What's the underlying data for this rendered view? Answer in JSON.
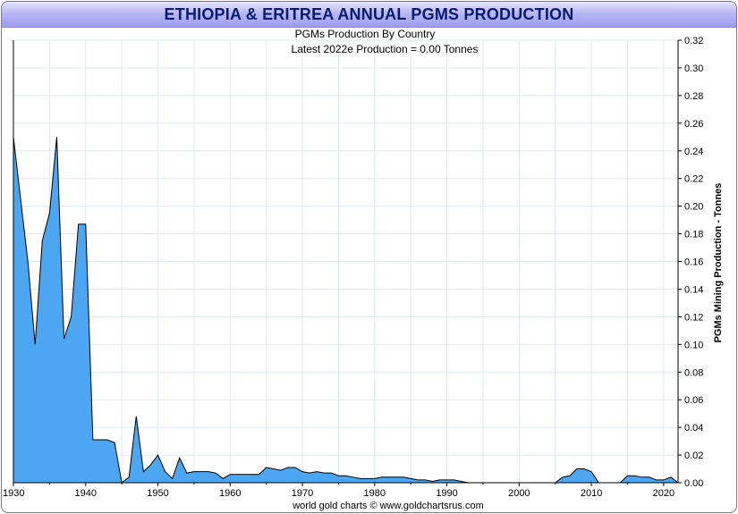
{
  "header": {
    "title": "ETHIOPIA & ERITREA ANNUAL PGMS PRODUCTION"
  },
  "chart_data": {
    "type": "area",
    "subtitle": "PGMs Production By Country",
    "annotation": "Latest 2022e Production = 0.00 Tonnes",
    "ylabel": "PGMs Mining Production - Tonnes",
    "xlabel": "",
    "footer": "world gold charts © www.goldchartsrus.com",
    "xlim": [
      1930,
      2022
    ],
    "ylim": [
      0,
      0.32
    ],
    "x_ticks": [
      "1930",
      "1940",
      "1950",
      "1960",
      "1970",
      "1980",
      "1990",
      "2000",
      "2010",
      "2020"
    ],
    "y_ticks": [
      "0.00",
      "0.02",
      "0.04",
      "0.06",
      "0.08",
      "0.10",
      "0.12",
      "0.14",
      "0.16",
      "0.18",
      "0.20",
      "0.22",
      "0.24",
      "0.26",
      "0.28",
      "0.30",
      "0.32"
    ],
    "y_axis_side": "right",
    "grid": true,
    "fill_color": "#4da6f2",
    "line_color": "#000000",
    "series": [
      {
        "x": [
          1930,
          1931,
          1932,
          1933,
          1934,
          1935,
          1936,
          1937,
          1938,
          1939,
          1940,
          1941,
          1942,
          1943,
          1944,
          1945,
          1946,
          1947,
          1948,
          1949,
          1950,
          1951,
          1952,
          1953,
          1954,
          1955,
          1956,
          1957,
          1958,
          1959,
          1960,
          1961,
          1962,
          1963,
          1964,
          1965,
          1966,
          1967,
          1968,
          1969,
          1970,
          1971,
          1972,
          1973,
          1974,
          1975,
          1976,
          1977,
          1978,
          1979,
          1980,
          1981,
          1982,
          1983,
          1984,
          1985,
          1986,
          1987,
          1988,
          1989,
          1990,
          1991,
          1992,
          1993,
          1994,
          1995,
          1996,
          1997,
          1998,
          1999,
          2000,
          2001,
          2002,
          2003,
          2004,
          2005,
          2006,
          2007,
          2008,
          2009,
          2010,
          2011,
          2012,
          2013,
          2014,
          2015,
          2016,
          2017,
          2018,
          2019,
          2020,
          2021,
          2022
        ],
        "values": [
          0.25,
          0.205,
          0.16,
          0.1,
          0.175,
          0.195,
          0.25,
          0.104,
          0.12,
          0.187,
          0.187,
          0.031,
          0.031,
          0.031,
          0.029,
          0.0,
          0.004,
          0.048,
          0.008,
          0.013,
          0.02,
          0.008,
          0.003,
          0.018,
          0.007,
          0.008,
          0.008,
          0.008,
          0.007,
          0.003,
          0.006,
          0.006,
          0.006,
          0.006,
          0.006,
          0.011,
          0.01,
          0.009,
          0.011,
          0.011,
          0.008,
          0.007,
          0.008,
          0.007,
          0.007,
          0.005,
          0.005,
          0.004,
          0.003,
          0.003,
          0.003,
          0.004,
          0.004,
          0.004,
          0.004,
          0.003,
          0.002,
          0.002,
          0.001,
          0.002,
          0.002,
          0.002,
          0.001,
          0.0,
          0.0,
          0.0,
          0.0,
          0.0,
          0.0,
          0.0,
          0.0,
          0.0,
          0.0,
          0.0,
          0.0,
          0.0,
          0.004,
          0.005,
          0.01,
          0.01,
          0.008,
          0.0,
          0.0,
          0.0,
          0.0,
          0.005,
          0.005,
          0.004,
          0.004,
          0.002,
          0.002,
          0.004,
          0.0
        ]
      }
    ]
  }
}
